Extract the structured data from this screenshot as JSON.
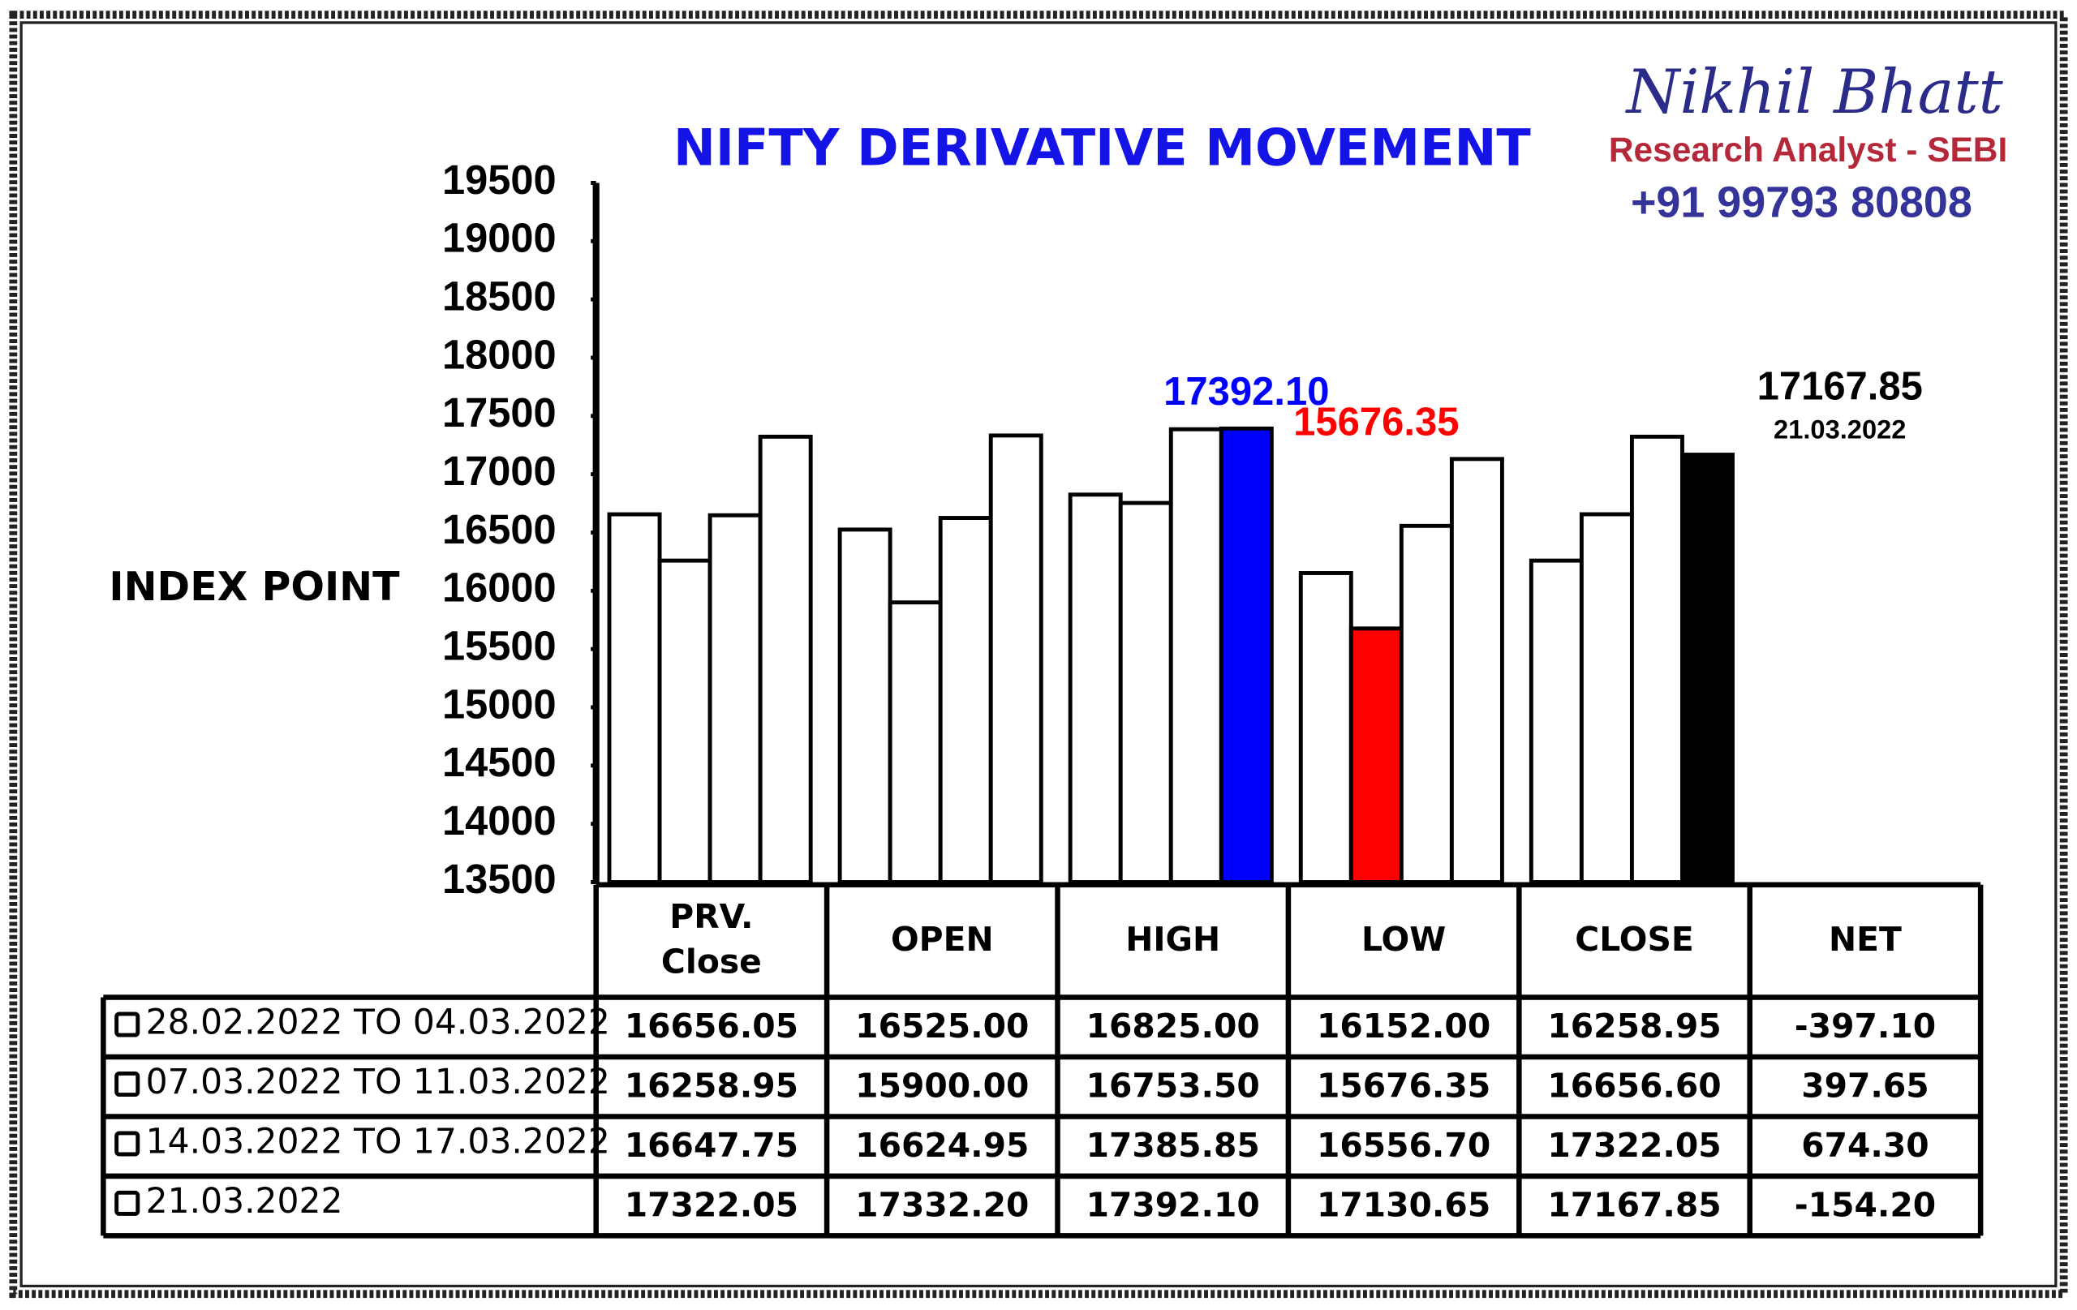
{
  "chart_data": {
    "type": "bar",
    "title": "NIFTY DERIVATIVE MOVEMENT",
    "ylabel": "INDEX POINT",
    "brand": {
      "name": "Nikhil Bhatt",
      "role": "Research Analyst - SEBI",
      "phone": "+91 99793 80808"
    },
    "categories": [
      "PRV. Close",
      "OPEN",
      "HIGH",
      "LOW",
      "CLOSE",
      "NET"
    ],
    "ylim": [
      13500,
      19500
    ],
    "yticks": [
      13500,
      14000,
      14500,
      15000,
      15500,
      16000,
      16500,
      17000,
      17500,
      18000,
      18500,
      19000,
      19500
    ],
    "series": [
      {
        "name": "28.02.2022 TO 04.03.2022",
        "color": "#ffffff",
        "values": [
          16656.05,
          16525,
          16825,
          16152,
          16258.95,
          -397.1
        ],
        "value_labels": [
          "16656.05",
          "16525.00",
          "16825.00",
          "16152.00",
          "16258.95",
          "-397.10"
        ]
      },
      {
        "name": "07.03.2022 TO 11.03.2022",
        "color": "#ffffff",
        "values": [
          16258.95,
          15900,
          16753.5,
          15676.35,
          16656.6,
          397.65
        ],
        "value_labels": [
          "16258.95",
          "15900.00",
          "16753.50",
          "15676.35",
          "16656.60",
          "397.65"
        ]
      },
      {
        "name": "14.03.2022 TO 17.03.2022",
        "color": "#ffffff",
        "values": [
          16647.75,
          16624.95,
          17385.85,
          16556.7,
          17322.05,
          674.3
        ],
        "value_labels": [
          "16647.75",
          "16624.95",
          "17385.85",
          "16556.70",
          "17322.05",
          "674.30"
        ]
      },
      {
        "name": "21.03.2022",
        "color": "#ffffff",
        "values": [
          17322.05,
          17332.2,
          17392.1,
          17130.65,
          17167.85,
          -154.2
        ],
        "value_labels": [
          "17322.05",
          "17332.20",
          "17392.10",
          "17130.65",
          "17167.85",
          "-154.20"
        ]
      }
    ],
    "annotations": [
      {
        "label": "17392.10",
        "series": 3,
        "category": 2,
        "color": "#0000ff"
      },
      {
        "label": "15676.35",
        "series": 1,
        "category": 3,
        "color": "#ff0000"
      },
      {
        "label": "17167.85",
        "sublabel": "21.03.2022",
        "series": 3,
        "category": 4,
        "color": "#000000"
      }
    ]
  }
}
